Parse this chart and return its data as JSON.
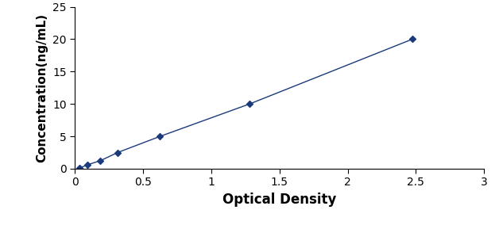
{
  "x_data": [
    0.031,
    0.094,
    0.188,
    0.313,
    0.625,
    1.281,
    2.475
  ],
  "y_data": [
    0.078,
    0.625,
    1.25,
    2.5,
    5.0,
    10.0,
    20.0
  ],
  "line_color": "#1a3a7a",
  "marker_style": "D",
  "marker_size": 4,
  "marker_color": "#1a3a7a",
  "xlabel": "Optical Density",
  "ylabel": "Concentration(ng/mL)",
  "xlim": [
    0,
    3
  ],
  "ylim": [
    0,
    25
  ],
  "xticks": [
    0,
    0.5,
    1,
    1.5,
    2,
    2.5,
    3
  ],
  "yticks": [
    0,
    5,
    10,
    15,
    20,
    25
  ],
  "xlabel_fontsize": 12,
  "ylabel_fontsize": 11,
  "tick_fontsize": 10,
  "line_width": 1.0,
  "line_style": "-"
}
